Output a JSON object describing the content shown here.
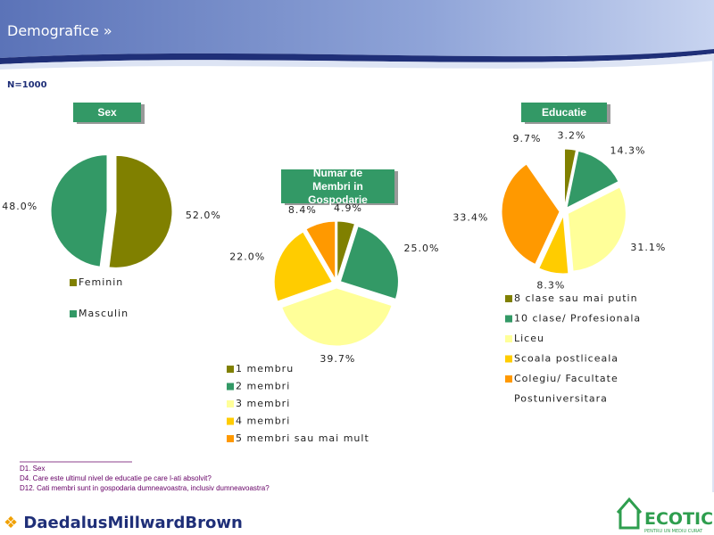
{
  "header": {
    "title": "Demografice »",
    "sample": "N=1000"
  },
  "chart_data": [
    {
      "type": "pie",
      "title": "Sex",
      "categories": [
        "Feminin",
        "Masculin"
      ],
      "values": [
        52.0,
        48.0
      ],
      "value_labels": [
        "52.0%",
        "48.0%"
      ],
      "colors": [
        "#808000",
        "#339966"
      ]
    },
    {
      "type": "pie",
      "title": "Numar de Membri in Gospodarie",
      "categories": [
        "1 membru",
        "2 membri",
        "3 membri",
        "4 membri",
        "5 membri sau mai mult"
      ],
      "values": [
        4.9,
        25.0,
        39.7,
        22.0,
        8.4
      ],
      "value_labels": [
        "4.9%",
        "25.0%",
        "39.7%",
        "22.0%",
        "8.4%"
      ],
      "colors": [
        "#808000",
        "#339966",
        "#ffff99",
        "#ffcc00",
        "#ff9900"
      ]
    },
    {
      "type": "pie",
      "title": "Educatie",
      "categories": [
        "8 clase sau mai putin",
        "10 clase/ Profesionala",
        "Liceu",
        "Scoala postliceala",
        "Colegiu/ Facultate",
        "Postuniversitara"
      ],
      "values": [
        3.2,
        14.3,
        31.1,
        8.3,
        33.4,
        9.7
      ],
      "value_labels": [
        "3.2%",
        "14.3%",
        "31.1%",
        "8.3%",
        "33.4%",
        "9.7%"
      ],
      "colors": [
        "#808000",
        "#339966",
        "#ffff99",
        "#ffcc00",
        "#ff9900",
        "#ffffff"
      ]
    }
  ],
  "footnotes": [
    "D1. Sex",
    "D4. Care este ultimul nivel de educatie pe care l-ati absolvit?",
    "D12. Cati membri sunt in gospodaria dumneavoastra, inclusiv dumneavoastra?"
  ],
  "logos": {
    "left": "DaedalusMillwardBrown",
    "right": "ECOTIC",
    "right_tagline": "PENTRU UN MEDIU CURAT"
  }
}
